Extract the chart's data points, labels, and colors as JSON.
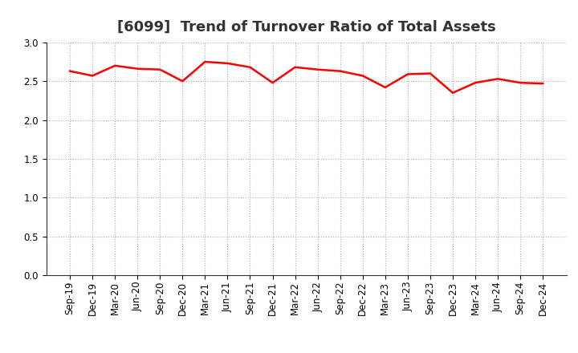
{
  "title": "[6099]  Trend of Turnover Ratio of Total Assets",
  "x_labels": [
    "Sep-19",
    "Dec-19",
    "Mar-20",
    "Jun-20",
    "Sep-20",
    "Dec-20",
    "Mar-21",
    "Jun-21",
    "Sep-21",
    "Dec-21",
    "Mar-22",
    "Jun-22",
    "Sep-22",
    "Dec-22",
    "Mar-23",
    "Jun-23",
    "Sep-23",
    "Dec-23",
    "Mar-24",
    "Jun-24",
    "Sep-24",
    "Dec-24"
  ],
  "y_values": [
    2.63,
    2.57,
    2.7,
    2.66,
    2.65,
    2.5,
    2.75,
    2.73,
    2.68,
    2.48,
    2.68,
    2.65,
    2.63,
    2.57,
    2.42,
    2.59,
    2.6,
    2.35,
    2.48,
    2.53,
    2.48,
    2.47
  ],
  "line_color": "#FF0000",
  "line_width": 1.8,
  "ylim": [
    0.0,
    3.0
  ],
  "yticks": [
    0.0,
    0.5,
    1.0,
    1.5,
    2.0,
    2.5,
    3.0
  ],
  "background_color": "#FFFFFF",
  "grid_color": "#AAAAAA",
  "title_fontsize": 13,
  "tick_fontsize": 8.5
}
